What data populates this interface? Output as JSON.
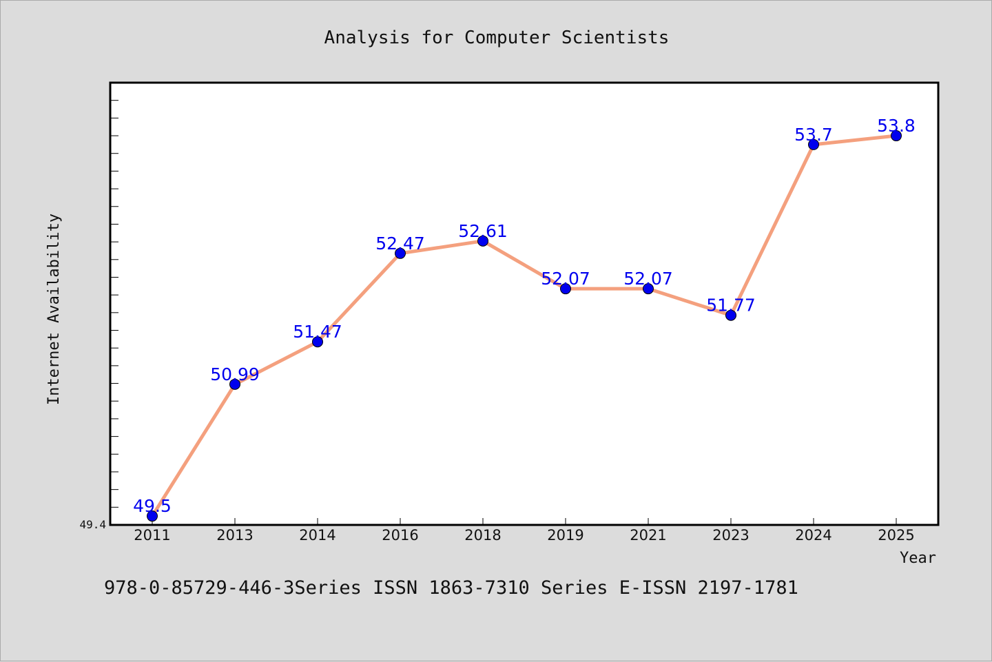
{
  "chart_data": {
    "type": "line",
    "title": "Analysis for Computer Scientists",
    "xlabel": "Year",
    "ylabel": "Internet Availability",
    "categories": [
      "2011",
      "2013",
      "2014",
      "2016",
      "2018",
      "2019",
      "2021",
      "2023",
      "2024",
      "2025"
    ],
    "series": [
      {
        "values": [
          49.5,
          50.99,
          51.47,
          52.47,
          52.61,
          52.07,
          52.07,
          51.77,
          53.7,
          53.8
        ],
        "data_labels": [
          "49.5",
          "50.99",
          "51.47",
          "52.47",
          "52.61",
          "52.07",
          "52.07",
          "51.77",
          "53.7",
          "53.8"
        ]
      }
    ],
    "ylim": [
      49.4,
      54.4
    ],
    "ytick_labels": [
      "49.4"
    ],
    "grid": false,
    "colors": {
      "line": "#f4a07e",
      "marker": "#0000ee",
      "data_label": "#0000ee",
      "plot_background": "#ffffff",
      "figure_background": "#dcdcdc"
    }
  },
  "footer": {
    "text": "978-0-85729-446-3Series ISSN 1863-7310 Series E-ISSN 2197-1781"
  }
}
